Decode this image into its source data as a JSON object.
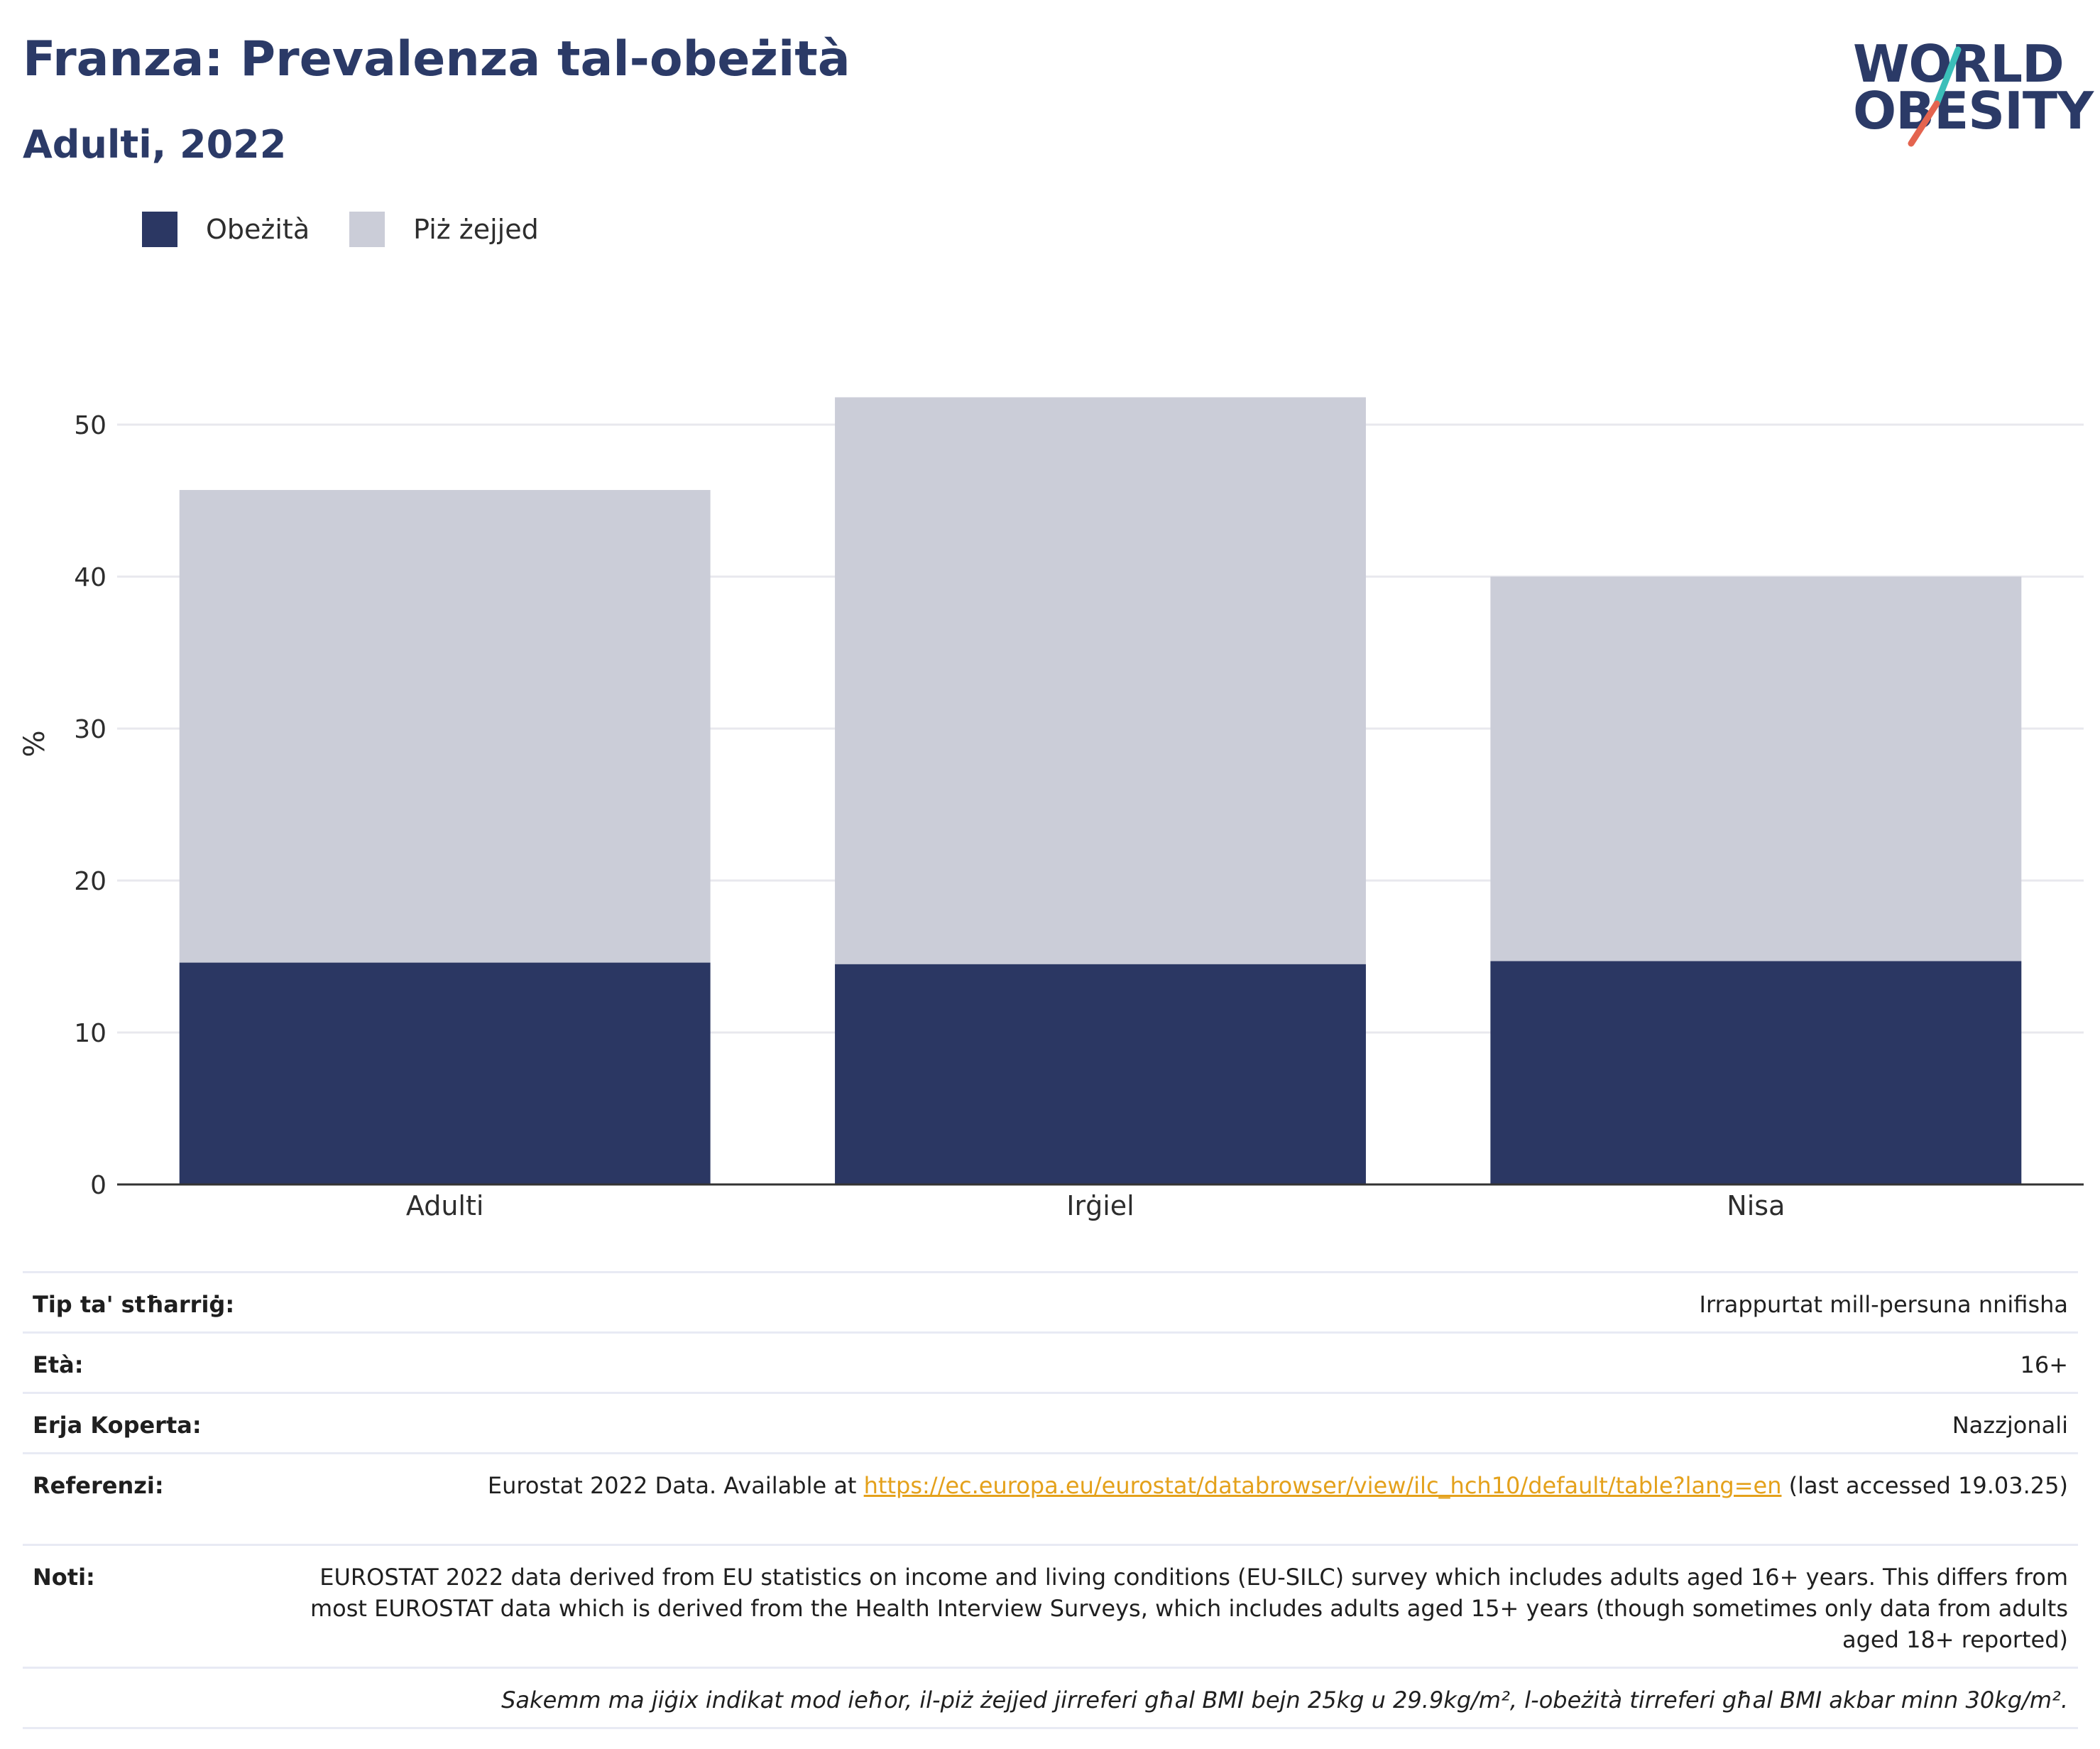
{
  "header": {
    "title": "Franza: Prevalenza tal-obeżità",
    "subtitle": "Adulti, 2022"
  },
  "logo": {
    "line1": "WORLD",
    "line2": "OBESITY",
    "accent_colors": [
      "#3bbfb9",
      "#e4644f"
    ]
  },
  "legend": [
    {
      "label": "Obeżità",
      "color": "#2b3763"
    },
    {
      "label": "Piż żejjed",
      "color": "#cbcdd8"
    }
  ],
  "chart_data": {
    "type": "bar",
    "stacked": true,
    "categories": [
      "Adulti",
      "Irġiel",
      "Nisa"
    ],
    "series": [
      {
        "name": "Obeżità",
        "values": [
          14.6,
          14.5,
          14.7
        ],
        "color": "#2b3763"
      },
      {
        "name": "Piż żejjed",
        "values": [
          31.1,
          37.3,
          25.3
        ],
        "color": "#cbcdd8"
      }
    ],
    "xlabel": "",
    "ylabel": "%",
    "ylim": [
      0,
      55
    ],
    "yticks": [
      0,
      10,
      20,
      30,
      40,
      50
    ],
    "grid": true,
    "legend_position": "top-left"
  },
  "meta": {
    "rows": [
      {
        "key": "Tip ta' stħarriġ:",
        "value": "Irrappurtat mill-persuna nnifisha"
      },
      {
        "key": "Età:",
        "value": "16+"
      },
      {
        "key": "Erja Koperta:",
        "value": "Nazzjonali"
      },
      {
        "key": "Referenzi:",
        "value_pre": "Eurostat 2022 Data. Available at ",
        "link": "https://ec.europa.eu/eurostat/databrowser/view/ilc_hch10/default/table?lang=en",
        "value_post": " (last accessed 19.03.25)"
      },
      {
        "key": "Noti:",
        "value": "EUROSTAT 2022 data derived from EU statistics on income and living conditions (EU-SILC) survey which includes adults aged 16+ years. This differs from most EUROSTAT data which is derived from the Health Interview Surveys, which includes adults aged 15+ years (though sometimes only data from adults aged 18+ reported)"
      }
    ],
    "footnote": "Sakemm ma jiġix indikat mod ieħor, il-piż żejjed jirreferi għal BMI bejn 25kg u 29.9kg/m², l-obeżità tirreferi għal BMI akbar minn 30kg/m²."
  }
}
